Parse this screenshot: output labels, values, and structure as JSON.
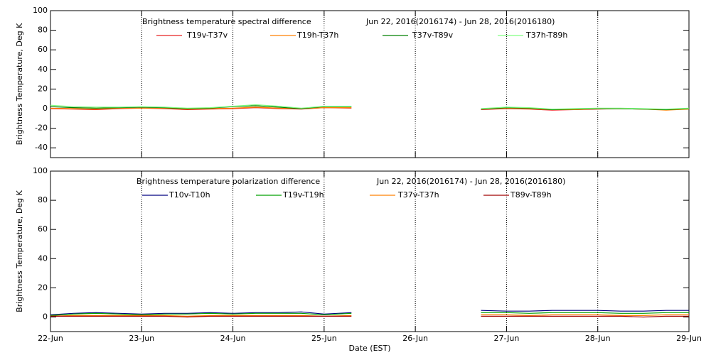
{
  "chart_data": [
    {
      "type": "line",
      "title": "Brightness temperature spectral difference",
      "subtitle": "Jun 22, 2016(2016174) - Jun 28, 2016(2016180)",
      "y_label": "Brightness Temperature, Deg K",
      "x": [
        22,
        22.25,
        22.5,
        22.75,
        23,
        23.25,
        23.5,
        23.75,
        24,
        24.25,
        24.5,
        24.75,
        25,
        25.3,
        26,
        26.72,
        27,
        27.25,
        27.5,
        27.75,
        28,
        28.25,
        28.5,
        28.75,
        29
      ],
      "series": [
        {
          "name": "T19v-T37v",
          "color": "#e82020",
          "values": [
            0,
            -0.5,
            -1,
            0,
            0.5,
            0,
            -1,
            -0.5,
            0,
            1,
            0,
            -0.5,
            1,
            0.5,
            null,
            -1,
            0,
            -0.5,
            -1.5,
            -1,
            -0.5,
            0,
            -0.5,
            -1,
            0
          ]
        },
        {
          "name": "T19h-T37h",
          "color": "#ff8000",
          "values": [
            0.5,
            0,
            -0.5,
            0.5,
            0.5,
            0.5,
            -0.5,
            0,
            0.5,
            1.5,
            0.5,
            0,
            1,
            1,
            null,
            -0.5,
            0.5,
            0,
            -1,
            -1,
            0,
            0,
            -0.5,
            -1.5,
            -0.5
          ]
        },
        {
          "name": "T37v-T89v",
          "color": "#008000",
          "values": [
            2,
            1,
            0.5,
            1,
            1.5,
            1,
            0,
            0.5,
            2,
            3,
            1.5,
            0,
            2,
            2,
            null,
            -0.5,
            1,
            0.5,
            -1,
            -0.5,
            0,
            0,
            -0.5,
            -1,
            0
          ]
        },
        {
          "name": "T37h-T89h",
          "color": "#80ff80",
          "values": [
            3.5,
            2,
            1.5,
            1.5,
            2,
            1.5,
            0.5,
            1,
            2.5,
            4,
            2.5,
            0.5,
            2.5,
            2.5,
            null,
            0,
            1.5,
            1,
            -0.5,
            0,
            0.5,
            0.5,
            0,
            -0.5,
            0.5
          ]
        }
      ],
      "xlim": [
        22,
        29
      ],
      "xticks": [
        22,
        23,
        24,
        25,
        26,
        27,
        28,
        29
      ],
      "ylim": [
        -50,
        100
      ],
      "yticks": [
        -40,
        -20,
        0,
        20,
        40,
        60,
        80,
        100
      ],
      "grid": "x"
    },
    {
      "type": "line",
      "title": "Brightness temperature polarization difference",
      "subtitle": "Jun 22, 2016(2016174) - Jun 28, 2016(2016180)",
      "y_label": "Brightness Temperature, Deg K",
      "x_label": "Date (EST)",
      "x": [
        22,
        22.25,
        22.5,
        22.75,
        23,
        23.25,
        23.5,
        23.75,
        24,
        24.25,
        24.5,
        24.75,
        25,
        25.3,
        26,
        26.72,
        27,
        27.25,
        27.5,
        27.75,
        28,
        28.25,
        28.5,
        28.75,
        29
      ],
      "series": [
        {
          "name": "T10v-T10h",
          "color": "#000080",
          "values": [
            1.5,
            2.5,
            3,
            2.5,
            2,
            2.5,
            2.5,
            3,
            2.5,
            3,
            3,
            3.5,
            2,
            3,
            null,
            4.5,
            4,
            4,
            4.5,
            4.5,
            4.5,
            4,
            4,
            4.5,
            4.5
          ]
        },
        {
          "name": "T19v-T19h",
          "color": "#00a000",
          "values": [
            1,
            2,
            2.5,
            2,
            1.5,
            2,
            2,
            2.5,
            2,
            2.5,
            2.5,
            2.5,
            1.5,
            2.5,
            null,
            3,
            3,
            2.5,
            3,
            3,
            3,
            2.5,
            2.5,
            3,
            3
          ]
        },
        {
          "name": "T37v-T37h",
          "color": "#ff8000",
          "values": [
            0.5,
            1,
            1,
            1,
            1,
            1,
            0.5,
            1,
            1,
            1,
            1,
            1,
            0.5,
            1,
            null,
            1.5,
            1.5,
            1,
            1.5,
            1.5,
            1.5,
            1,
            1,
            1.5,
            1.5
          ]
        },
        {
          "name": "T89v-T89h",
          "color": "#a00000",
          "values": [
            0.5,
            0.5,
            0.5,
            0.5,
            0.5,
            0.5,
            0,
            0.5,
            0.5,
            0.5,
            0.5,
            0.5,
            0.5,
            0.5,
            null,
            0.5,
            0.5,
            0.5,
            0.5,
            0.5,
            0.5,
            0.5,
            0,
            0.5,
            0.5
          ]
        }
      ],
      "xlim": [
        22,
        29
      ],
      "xticks": [
        {
          "value": 22,
          "label": "22-Jun"
        },
        {
          "value": 23,
          "label": "23-Jun"
        },
        {
          "value": 24,
          "label": "24-Jun"
        },
        {
          "value": 25,
          "label": "25-Jun"
        },
        {
          "value": 26,
          "label": "26-Jun"
        },
        {
          "value": 27,
          "label": "27-Jun"
        },
        {
          "value": 28,
          "label": "28-Jun"
        },
        {
          "value": 29,
          "label": "29-Jun"
        }
      ],
      "ylim": [
        -10,
        100
      ],
      "yticks": [
        0,
        20,
        40,
        60,
        80,
        100
      ],
      "grid": "x"
    }
  ]
}
